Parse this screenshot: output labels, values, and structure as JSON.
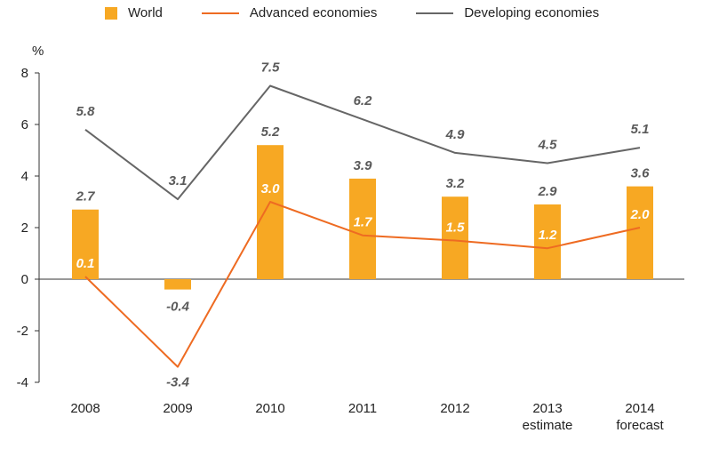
{
  "chart_data": {
    "type": "bar",
    "ylabel": "%",
    "ylim": [
      -4,
      8
    ],
    "yticks": [
      -4,
      -2,
      0,
      2,
      4,
      6,
      8
    ],
    "categories": [
      [
        "2008"
      ],
      [
        "2009"
      ],
      [
        "2010"
      ],
      [
        "2011"
      ],
      [
        "2012"
      ],
      [
        "2013",
        "estimate"
      ],
      [
        "2014",
        "forecast"
      ]
    ],
    "series": [
      {
        "name": "World",
        "kind": "bar",
        "color": "#f7a823",
        "values": [
          2.7,
          -0.4,
          5.2,
          3.9,
          3.2,
          2.9,
          3.6
        ]
      },
      {
        "name": "Advanced economies",
        "kind": "line",
        "color": "#ee6b22",
        "values": [
          0.1,
          -3.4,
          3.0,
          1.7,
          1.5,
          1.2,
          2.0
        ]
      },
      {
        "name": "Developing economies",
        "kind": "line",
        "color": "#666666",
        "values": [
          5.8,
          3.1,
          7.5,
          6.2,
          4.9,
          4.5,
          5.1
        ]
      }
    ],
    "grid": "horizontal-zero-line-only",
    "legend_position": "top"
  }
}
